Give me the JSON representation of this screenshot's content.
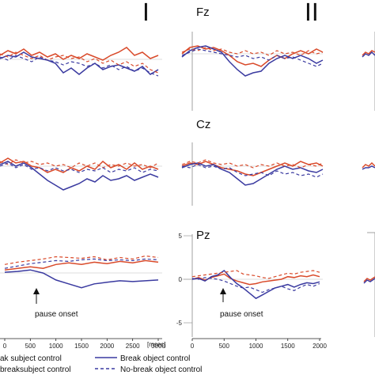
{
  "figure": {
    "section_labels": [
      "I",
      "II"
    ],
    "unit_label": "[msec]",
    "annotation": "pause onset",
    "legend": [
      {
        "label": "ak subject control",
        "color": "#d94a2a",
        "dashed": false
      },
      {
        "label": "Break object control",
        "color": "#3a3aa0",
        "dashed": false
      },
      {
        "label": "breaksubject control",
        "color": "#d94a2a",
        "dashed": true
      },
      {
        "label": "No-break object control",
        "color": "#3a3aa0",
        "dashed": true
      }
    ],
    "colors": {
      "red": "#d94a2a",
      "blue": "#3a3aa0",
      "axis": "#888888"
    }
  },
  "chart_data": [
    {
      "type": "line",
      "panel": "I-Pz",
      "x": [
        0,
        250,
        500,
        750,
        1000,
        1250,
        1500,
        1750,
        2000,
        2250,
        2500,
        2750,
        3000
      ],
      "xticks": [
        "0",
        "500",
        "1000",
        "1500",
        "2000",
        "2500",
        "3000"
      ],
      "xlim": [
        0,
        3000
      ],
      "ylim": [
        -5,
        5
      ],
      "series": [
        {
          "values": [
            0.8,
            1.0,
            1.2,
            1.0,
            1.5,
            1.7,
            1.5,
            1.8,
            1.6,
            1.9,
            1.7,
            2.0,
            1.8
          ]
        },
        {
          "values": [
            0.5,
            0.6,
            0.8,
            0.4,
            -0.5,
            -1.0,
            -1.5,
            -1.0,
            -0.8,
            -0.6,
            -0.7,
            -0.6,
            -0.5
          ]
        },
        {
          "values": [
            1.5,
            1.8,
            2.0,
            2.2,
            2.5,
            2.4,
            2.3,
            2.5,
            2.1,
            2.4,
            2.2,
            2.6,
            2.4
          ]
        },
        {
          "values": [
            1.0,
            1.3,
            1.6,
            1.8,
            2.0,
            1.9,
            2.1,
            2.2,
            2.0,
            2.1,
            2.0,
            2.2,
            2.1
          ]
        }
      ]
    },
    {
      "type": "line",
      "panel": "II-Pz",
      "x": [
        0,
        100,
        200,
        300,
        400,
        500,
        600,
        700,
        800,
        900,
        1000,
        1100,
        1200,
        1300,
        1400,
        1500,
        1600,
        1700,
        1800,
        1900,
        2000
      ],
      "xticks": [
        "0",
        "500",
        "1000",
        "1500",
        "2000"
      ],
      "yticks": [
        "-5",
        "0",
        "5"
      ],
      "xlim": [
        0,
        2000
      ],
      "ylim": [
        -5,
        5
      ],
      "series": [
        {
          "values": [
            0,
            0.2,
            -0.1,
            0.2,
            0.4,
            0.6,
            0.1,
            -0.2,
            -0.4,
            -0.6,
            -0.5,
            -0.3,
            -0.2,
            -0.1,
            0.0,
            0.3,
            0.2,
            0.4,
            0.3,
            0.5,
            0.3
          ]
        },
        {
          "values": [
            0,
            0.1,
            -0.2,
            0.3,
            0.5,
            1.0,
            0.2,
            -0.5,
            -1.0,
            -1.6,
            -2.2,
            -1.8,
            -1.4,
            -1.0,
            -0.8,
            -0.6,
            -0.9,
            -0.6,
            -0.4,
            -0.5,
            -0.3
          ]
        },
        {
          "values": [
            0.3,
            0.4,
            0.5,
            0.6,
            0.7,
            0.8,
            0.9,
            1.0,
            0.6,
            0.5,
            0.4,
            0.2,
            0.1,
            0.3,
            0.5,
            0.7,
            0.6,
            0.8,
            0.9,
            1.0,
            0.8
          ]
        },
        {
          "values": [
            0.1,
            0.0,
            0.2,
            0.1,
            0.0,
            -0.2,
            -0.5,
            -0.8,
            -1.0,
            -0.9,
            -1.2,
            -1.5,
            -1.2,
            -1.0,
            -0.8,
            -1.1,
            -1.3,
            -0.9,
            -0.6,
            -0.8,
            -0.5
          ]
        }
      ]
    }
  ]
}
